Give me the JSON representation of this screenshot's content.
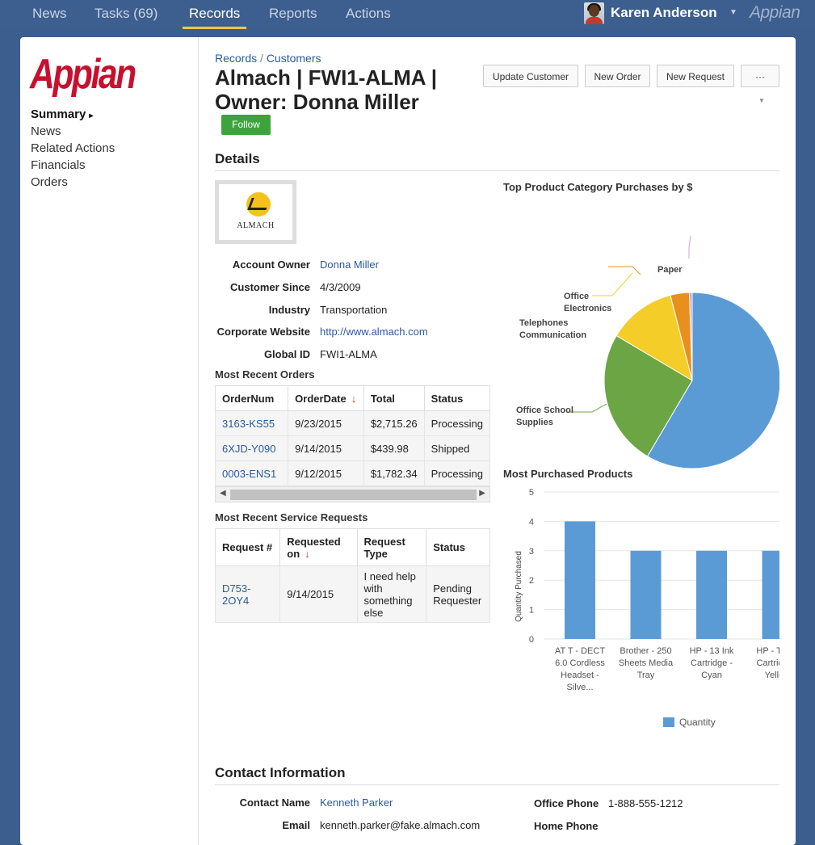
{
  "topnav": {
    "tabs": [
      {
        "label": "News"
      },
      {
        "label": "Tasks (69)"
      },
      {
        "label": "Records"
      },
      {
        "label": "Reports"
      },
      {
        "label": "Actions"
      }
    ],
    "active_tab": "Records",
    "user_name": "Karen Anderson",
    "brand": "Appian"
  },
  "sidebar": {
    "logo": "Appian",
    "items": [
      {
        "label": "Summary"
      },
      {
        "label": "News"
      },
      {
        "label": "Related Actions"
      },
      {
        "label": "Financials"
      },
      {
        "label": "Orders"
      }
    ],
    "active_item": "Summary"
  },
  "header": {
    "breadcrumb": [
      "Records",
      "Customers"
    ],
    "breadcrumb_separator": "/",
    "title": "Almach | FWI1-ALMA | Owner: Donna Miller",
    "follow_label": "Follow",
    "actions": {
      "update_customer": "Update Customer",
      "new_order": "New Order",
      "new_request": "New Request",
      "more": "···"
    }
  },
  "details": {
    "section_title": "Details",
    "company_logo_text": "ALMACH",
    "fields": [
      {
        "label": "Account Owner",
        "value": "Donna Miller"
      },
      {
        "label": "Customer Since",
        "value": "4/3/2009"
      },
      {
        "label": "Industry",
        "value": "Transportation"
      },
      {
        "label": "Corporate Website",
        "value": "http://www.almach.com"
      },
      {
        "label": "Global ID",
        "value": "FWI1-ALMA"
      }
    ]
  },
  "orders": {
    "title": "Most Recent Orders",
    "columns": [
      "OrderNum",
      "OrderDate",
      "Total",
      "Status"
    ],
    "rows": [
      [
        "3163-KS55",
        "9/23/2015",
        "$2,715.26",
        "Processing"
      ],
      [
        "6XJD-Y090",
        "9/14/2015",
        "$439.98",
        "Shipped"
      ],
      [
        "0003-ENS1",
        "9/12/2015",
        "$1,782.34",
        "Processing"
      ]
    ]
  },
  "service_requests": {
    "title": "Most Recent Service Requests",
    "columns": [
      "Request #",
      "Requested on",
      "Request Type",
      "Status"
    ],
    "rows": [
      [
        "D753-2OY4",
        "9/14/2015",
        "I need help with something else",
        "Pending Requester"
      ]
    ]
  },
  "pie_chart": {
    "title": "Top Product Category Purchases by $",
    "labels": [
      "Paper",
      "Office Electronics",
      "Telephones Communication",
      "Office School Supplies"
    ]
  },
  "bar_chart": {
    "title": "Most Purchased Products",
    "legend": "Quantity"
  },
  "chart_data": [
    {
      "type": "pie",
      "title": "Top Product Category Purchases by $",
      "slices": [
        {
          "label": "",
          "value": 58.5,
          "color": "#5b9bd5"
        },
        {
          "label": "Office School Supplies",
          "value": 25,
          "color": "#6ca644"
        },
        {
          "label": "Telephones Communication",
          "value": 12.5,
          "color": "#f5cd28"
        },
        {
          "label": "Office Electronics",
          "value": 3.5,
          "color": "#e8901e"
        },
        {
          "label": "Paper",
          "value": 0.5,
          "color": "#c9a3d6"
        }
      ]
    },
    {
      "type": "bar",
      "title": "Most Purchased Products",
      "categories": [
        "AT T - DECT 6.0 Cordless Headset - Silve...",
        "Brother - 250 Sheets Media Tray",
        "HP - 13 Ink Cartridge - Cyan",
        "HP - Toner Cartridge - Yellow"
      ],
      "series": [
        {
          "name": "Quantity",
          "values": [
            4,
            3,
            3,
            3
          ],
          "color": "#5b9bd5"
        }
      ],
      "ylabel": "Quantity Purchased",
      "ylim": [
        0,
        5
      ],
      "yticks": [
        0,
        1,
        2,
        3,
        4,
        5
      ],
      "legend": "bottom"
    }
  ],
  "contact": {
    "section_title": "Contact Information",
    "left": [
      {
        "label": "Contact Name",
        "value": "Kenneth Parker"
      },
      {
        "label": "Email",
        "value": "kenneth.parker@fake.almach.com"
      }
    ],
    "right": [
      {
        "label": "Office Phone",
        "value": "1-888-555-1212"
      },
      {
        "label": "Home Phone",
        "value": ""
      }
    ]
  }
}
